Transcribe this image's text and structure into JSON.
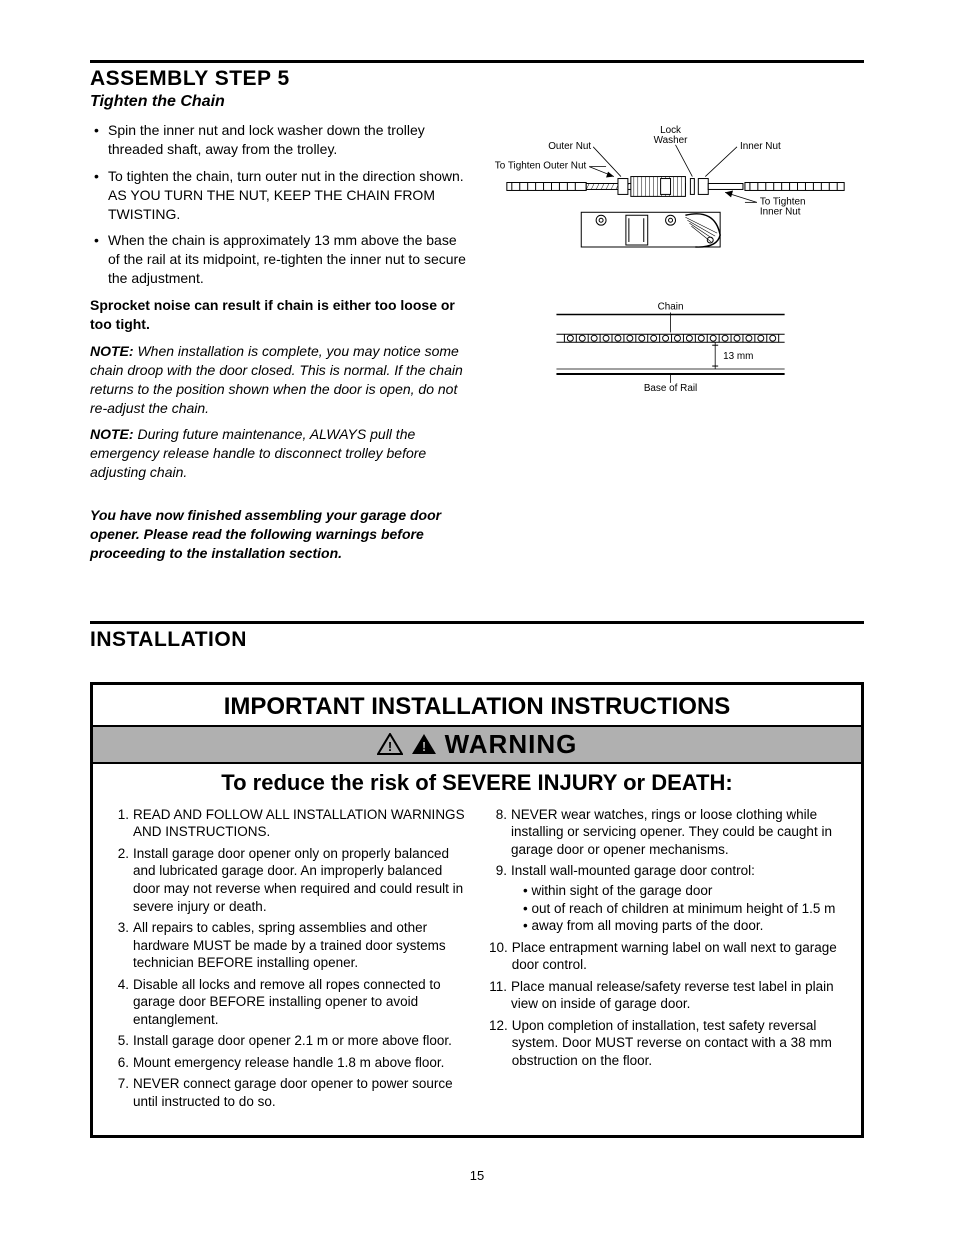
{
  "step": {
    "title": "ASSEMBLY STEP 5",
    "subtitle": "Tighten the Chain",
    "bullets": [
      "Spin the inner nut and lock washer down the trolley threaded shaft, away from the trolley.",
      "To tighten the chain, turn outer nut in the direction shown. AS YOU TURN THE NUT, KEEP THE CHAIN FROM TWISTING.",
      "When the chain is approximately 13 mm above the base of the rail at its midpoint, re-tighten the inner nut to secure the adjustment."
    ],
    "bold_line": "Sprocket noise can result if chain is either too loose or too tight.",
    "note1_label": "NOTE:",
    "note1": " When installation is complete, you may notice some chain droop with the door closed. This is normal. If the chain returns to the position shown when the door is open, do not re-adjust the chain.",
    "note2_label": "NOTE:",
    "note2": "  During future maintenance, ALWAYS pull the emergency release handle to disconnect trolley before adjusting chain.",
    "finish": "You have now finished assembling your garage door opener. Please read the following warnings before proceeding to the installation section."
  },
  "diagram": {
    "labels": {
      "outer_nut": "Outer Nut",
      "lock_washer": "Lock\nWasher",
      "inner_nut": "Inner Nut",
      "tighten_outer": "To Tighten Outer Nut",
      "tighten_inner": "To Tighten\nInner Nut",
      "chain": "Chain",
      "gap": "13 mm",
      "base": "Base of Rail"
    }
  },
  "installation": {
    "title": "INSTALLATION",
    "box_title": "IMPORTANT INSTALLATION INSTRUCTIONS",
    "warning": "WARNING",
    "subtitle": "To reduce the risk of SEVERE INJURY or DEATH:",
    "left_items": [
      {
        "n": "1.",
        "t": "READ AND FOLLOW ALL INSTALLATION WARNINGS AND INSTRUCTIONS."
      },
      {
        "n": "2.",
        "t": "Install garage door opener only on properly balanced and lubricated garage door. An improperly balanced door may not reverse when required and could result in severe injury or death."
      },
      {
        "n": "3.",
        "t": "All repairs to cables, spring assemblies and other hardware MUST be made by a trained door systems technician BEFORE installing opener."
      },
      {
        "n": "4.",
        "t": "Disable all locks and remove all ropes connected to garage door BEFORE installing opener to avoid entanglement."
      },
      {
        "n": "5.",
        "t": "Install garage door opener 2.1 m or more above floor."
      },
      {
        "n": "6.",
        "t": "Mount emergency release handle 1.8 m above floor."
      },
      {
        "n": "7.",
        "t": "NEVER connect garage door opener to power source until instructed to do so."
      }
    ],
    "right_items": [
      {
        "n": "8.",
        "t": "NEVER wear watches, rings or loose clothing while installing or servicing opener. They could be caught in garage door or opener mechanisms."
      },
      {
        "n": "9.",
        "t": "Install wall-mounted garage door control:",
        "subs": [
          "within sight of the garage door",
          "out of reach of children at minimum height of 1.5 m",
          "away from all moving parts of the door."
        ]
      },
      {
        "n": "10.",
        "t": "Place entrapment warning label on wall next to garage door control."
      },
      {
        "n": "11.",
        "t": "Place manual release/safety reverse test label in plain view on inside of garage door."
      },
      {
        "n": "12.",
        "t": "Upon completion of installation, test safety reversal system. Door MUST reverse on contact with a 38 mm obstruction on the floor."
      }
    ]
  },
  "page_number": "15"
}
